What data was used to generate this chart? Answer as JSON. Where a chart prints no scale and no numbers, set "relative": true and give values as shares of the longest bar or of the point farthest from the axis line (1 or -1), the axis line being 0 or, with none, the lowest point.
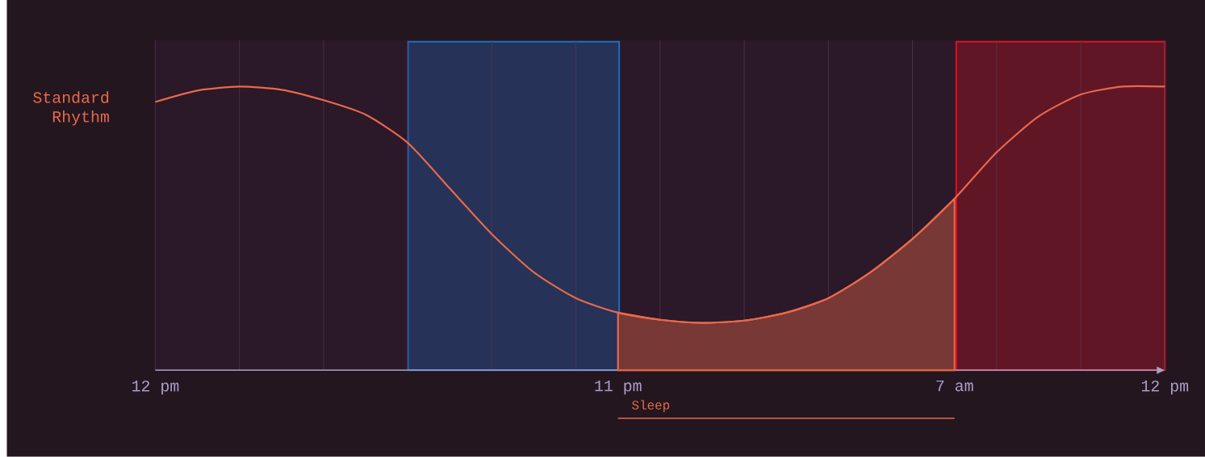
{
  "chart_data": {
    "type": "line",
    "relative": true,
    "legend": false,
    "categories": [
      "12 pm",
      null,
      null,
      null,
      null,
      null,
      null,
      null,
      null,
      null,
      null,
      "11 pm",
      null,
      null,
      null,
      null,
      null,
      null,
      null,
      "7 am",
      null,
      null,
      null,
      null,
      "12 pm"
    ],
    "grid": "x",
    "marker": "none",
    "line_style": "solid",
    "series": [
      {
        "name": "Standard Rhythm",
        "color": "#e8694a",
        "values": [
          0.946,
          0.986,
          1.0,
          0.989,
          0.952,
          0.901,
          0.802,
          0.641,
          0.48,
          0.345,
          0.254,
          0.203,
          0.178,
          0.167,
          0.175,
          0.203,
          0.254,
          0.345,
          0.463,
          0.605,
          0.768,
          0.895,
          0.972,
          1.0,
          1.0
        ]
      },
      {
        "type": "area",
        "color": "#e8694a",
        "values": [
          null,
          null,
          null,
          null,
          null,
          null,
          null,
          null,
          null,
          null,
          null,
          0.203,
          0.178,
          0.167,
          0.175,
          0.203,
          0.254,
          0.345,
          0.463,
          0.605,
          null,
          null,
          null,
          null,
          null
        ]
      }
    ],
    "annotations": [
      "Sleep"
    ]
  }
}
